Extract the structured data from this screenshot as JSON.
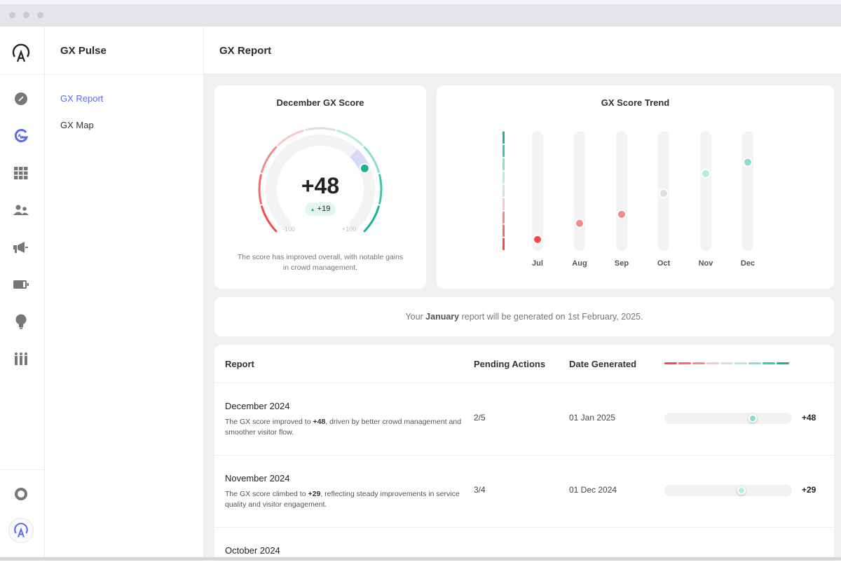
{
  "app": {
    "section_title": "GX Pulse",
    "page_title": "GX Report"
  },
  "subnav": {
    "items": [
      {
        "label": "GX Report",
        "active": true
      },
      {
        "label": "GX Map",
        "active": false
      }
    ]
  },
  "rail": {
    "icons": [
      "app-logo-icon",
      "compass-icon",
      "gx-pulse-icon",
      "grid-icon",
      "users-icon",
      "megaphone-icon",
      "battery-icon",
      "lightbulb-icon",
      "crowd-icon",
      "help-lifebuoy-icon",
      "profile-avatar-icon"
    ],
    "accent": "#5b6bf0"
  },
  "gauge": {
    "title": "December GX Score",
    "score": "+48",
    "value": 48,
    "change": "+19",
    "min_label": "-100",
    "max_label": "+100",
    "description": "The score has improved overall, with notable gains in crowd management."
  },
  "scale_colors": [
    "#f44a4a",
    "#f56a6a",
    "#f58a8a",
    "#f8c6cb",
    "#dcdde5",
    "#b5ebe2",
    "#8ddccf",
    "#3fc4ad",
    "#1fb096"
  ],
  "chart_data": {
    "type": "scatter",
    "title": "GX Score Trend",
    "categories": [
      "Jul",
      "Aug",
      "Sep",
      "Oct",
      "Nov",
      "Dec"
    ],
    "values": [
      -81,
      -54,
      -39,
      -4,
      29,
      48
    ],
    "ylim": [
      -100,
      100
    ]
  },
  "banner": {
    "prefix": "Your ",
    "month": "January",
    "suffix": " report will be generated on 1st February, 2025."
  },
  "table": {
    "headers": [
      "Report",
      "Pending Actions",
      "Date Generated"
    ],
    "rows": [
      {
        "name": "December 2024",
        "desc_pre": "The GX score improved to ",
        "desc_score": "+48",
        "desc_post": ", driven by better crowd management and smoother visitor flow.",
        "pending": "2/5",
        "date": "01 Jan 2025",
        "score": "+48",
        "value": 48
      },
      {
        "name": "November 2024",
        "desc_pre": "The GX score climbed to ",
        "desc_score": "+29",
        "desc_post": ", reflecting steady improvements in service quality and visitor engagement.",
        "pending": "3/4",
        "date": "01 Dec 2024",
        "score": "+29",
        "value": 29
      },
      {
        "name": "October 2024"
      }
    ]
  }
}
